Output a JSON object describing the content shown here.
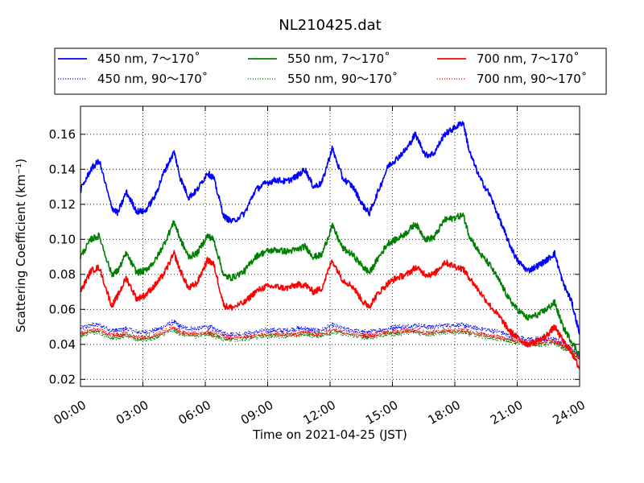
{
  "chart_data": {
    "type": "line",
    "title": "NL210425.dat",
    "xlabel": "Time on 2021-04-25 (JST)",
    "ylabel": "Scattering Coefficient (km⁻¹)",
    "x_unit": "hours (JST)",
    "xlim": [
      0,
      24
    ],
    "ylim": [
      0.016,
      0.176
    ],
    "x_ticks": [
      0,
      3,
      6,
      9,
      12,
      15,
      18,
      21,
      24
    ],
    "x_tick_labels": [
      "00:00",
      "03:00",
      "06:00",
      "09:00",
      "12:00",
      "15:00",
      "18:00",
      "21:00",
      "24:00"
    ],
    "y_ticks": [
      0.02,
      0.04,
      0.06,
      0.08,
      0.1,
      0.12,
      0.14,
      0.16
    ],
    "y_tick_labels": [
      "0.02",
      "0.04",
      "0.06",
      "0.08",
      "0.10",
      "0.12",
      "0.14",
      "0.16"
    ],
    "grid": true,
    "legend_position": "top",
    "x": [
      0.0,
      0.5,
      0.9,
      1.5,
      1.8,
      2.2,
      2.7,
      3.1,
      3.6,
      4.0,
      4.5,
      4.8,
      5.2,
      5.6,
      6.1,
      6.4,
      6.9,
      7.3,
      7.9,
      8.4,
      8.9,
      9.4,
      9.9,
      10.4,
      10.8,
      11.2,
      11.6,
      12.1,
      12.6,
      13.1,
      13.6,
      13.9,
      14.3,
      14.8,
      15.2,
      15.7,
      16.1,
      16.6,
      17.0,
      17.5,
      17.9,
      18.4,
      18.7,
      19.2,
      19.7,
      20.2,
      20.6,
      21.0,
      21.5,
      22.0,
      22.4,
      22.8,
      23.2,
      23.6,
      24.0
    ],
    "series": [
      {
        "name": "450 nm, 7～170˚",
        "color": "#0000ff",
        "style": "solid",
        "values": [
          0.128,
          0.14,
          0.145,
          0.118,
          0.115,
          0.127,
          0.116,
          0.116,
          0.125,
          0.138,
          0.15,
          0.135,
          0.124,
          0.128,
          0.138,
          0.135,
          0.113,
          0.11,
          0.115,
          0.128,
          0.132,
          0.134,
          0.133,
          0.136,
          0.14,
          0.13,
          0.132,
          0.152,
          0.135,
          0.13,
          0.119,
          0.115,
          0.127,
          0.142,
          0.146,
          0.152,
          0.16,
          0.148,
          0.149,
          0.16,
          0.163,
          0.167,
          0.15,
          0.135,
          0.125,
          0.11,
          0.098,
          0.088,
          0.082,
          0.085,
          0.088,
          0.092,
          0.075,
          0.065,
          0.046
        ]
      },
      {
        "name": "550 nm, 7～170˚",
        "color": "#008000",
        "style": "solid",
        "values": [
          0.09,
          0.1,
          0.102,
          0.08,
          0.082,
          0.092,
          0.081,
          0.082,
          0.088,
          0.097,
          0.11,
          0.1,
          0.09,
          0.092,
          0.102,
          0.1,
          0.079,
          0.078,
          0.082,
          0.09,
          0.093,
          0.094,
          0.093,
          0.094,
          0.096,
          0.09,
          0.091,
          0.108,
          0.095,
          0.091,
          0.084,
          0.081,
          0.089,
          0.098,
          0.1,
          0.104,
          0.109,
          0.1,
          0.101,
          0.111,
          0.112,
          0.114,
          0.102,
          0.092,
          0.085,
          0.075,
          0.066,
          0.06,
          0.055,
          0.057,
          0.06,
          0.064,
          0.05,
          0.042,
          0.034
        ]
      },
      {
        "name": "700 nm, 7～170˚",
        "color": "#ff0000",
        "style": "solid",
        "values": [
          0.07,
          0.082,
          0.084,
          0.062,
          0.068,
          0.078,
          0.066,
          0.068,
          0.074,
          0.08,
          0.092,
          0.082,
          0.072,
          0.075,
          0.088,
          0.086,
          0.062,
          0.061,
          0.064,
          0.07,
          0.073,
          0.073,
          0.072,
          0.074,
          0.074,
          0.07,
          0.072,
          0.088,
          0.077,
          0.073,
          0.064,
          0.062,
          0.069,
          0.075,
          0.078,
          0.08,
          0.084,
          0.08,
          0.08,
          0.087,
          0.085,
          0.083,
          0.078,
          0.07,
          0.062,
          0.055,
          0.048,
          0.044,
          0.04,
          0.042,
          0.045,
          0.05,
          0.042,
          0.036,
          0.026
        ]
      },
      {
        "name": "450 nm, 90～170˚",
        "color": "#0000ff",
        "style": "dotted",
        "values": [
          0.049,
          0.051,
          0.051,
          0.048,
          0.048,
          0.049,
          0.047,
          0.047,
          0.048,
          0.05,
          0.053,
          0.05,
          0.049,
          0.049,
          0.05,
          0.049,
          0.046,
          0.046,
          0.046,
          0.047,
          0.048,
          0.048,
          0.048,
          0.049,
          0.049,
          0.048,
          0.048,
          0.051,
          0.049,
          0.048,
          0.047,
          0.047,
          0.048,
          0.049,
          0.05,
          0.05,
          0.051,
          0.05,
          0.05,
          0.051,
          0.051,
          0.051,
          0.05,
          0.049,
          0.048,
          0.047,
          0.045,
          0.044,
          0.043,
          0.043,
          0.043,
          0.043,
          0.04,
          0.038,
          0.033
        ]
      },
      {
        "name": "550 nm, 90～170˚",
        "color": "#008000",
        "style": "dotted",
        "values": [
          0.045,
          0.047,
          0.047,
          0.044,
          0.044,
          0.045,
          0.043,
          0.043,
          0.044,
          0.046,
          0.048,
          0.046,
          0.045,
          0.045,
          0.046,
          0.045,
          0.043,
          0.043,
          0.043,
          0.044,
          0.045,
          0.045,
          0.045,
          0.045,
          0.046,
          0.045,
          0.045,
          0.047,
          0.046,
          0.045,
          0.044,
          0.044,
          0.045,
          0.046,
          0.046,
          0.047,
          0.047,
          0.046,
          0.046,
          0.047,
          0.047,
          0.047,
          0.046,
          0.045,
          0.044,
          0.043,
          0.042,
          0.041,
          0.04,
          0.04,
          0.04,
          0.041,
          0.038,
          0.036,
          0.031
        ]
      },
      {
        "name": "700 nm, 90～170˚",
        "color": "#ff0000",
        "style": "dotted",
        "values": [
          0.046,
          0.048,
          0.048,
          0.045,
          0.045,
          0.046,
          0.044,
          0.044,
          0.045,
          0.047,
          0.05,
          0.047,
          0.046,
          0.046,
          0.047,
          0.046,
          0.044,
          0.044,
          0.044,
          0.045,
          0.046,
          0.046,
          0.046,
          0.046,
          0.047,
          0.046,
          0.046,
          0.048,
          0.047,
          0.046,
          0.045,
          0.045,
          0.046,
          0.047,
          0.047,
          0.048,
          0.048,
          0.047,
          0.047,
          0.048,
          0.048,
          0.048,
          0.047,
          0.046,
          0.045,
          0.044,
          0.043,
          0.042,
          0.041,
          0.041,
          0.042,
          0.042,
          0.039,
          0.037,
          0.032
        ]
      }
    ]
  }
}
